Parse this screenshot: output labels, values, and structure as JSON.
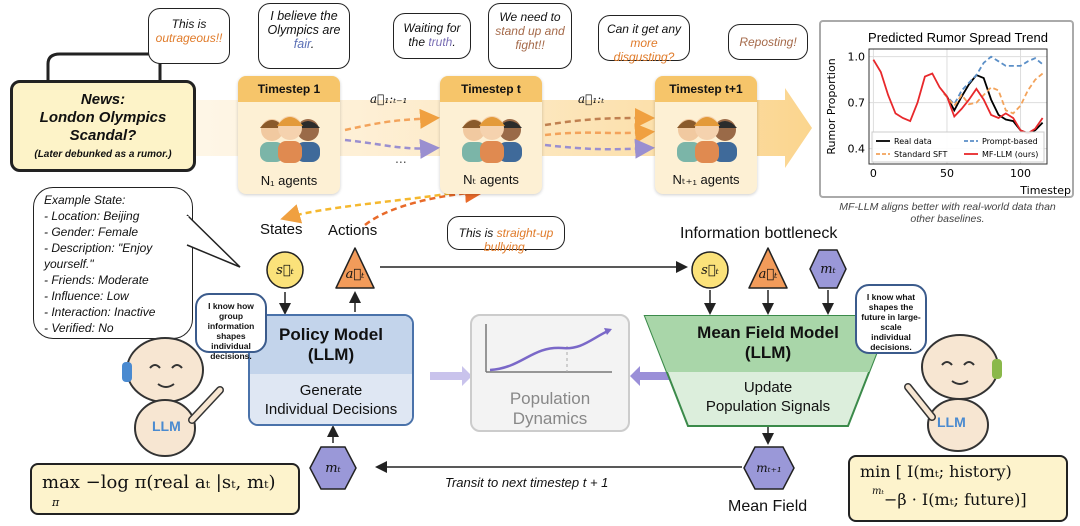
{
  "news": {
    "title": "News:\nLondon Olympics\nScandal?",
    "note": "(Later debunked as a rumor.)"
  },
  "bubbles": [
    {
      "pre": "This is ",
      "hl": "outrageous!!",
      "post": "",
      "color": "#e07b2a"
    },
    {
      "pre": "I believe the Olympics are ",
      "hl": "fair",
      "post": ".",
      "color": "#5a6fb5"
    },
    {
      "pre": "Waiting for the ",
      "hl": "truth",
      "post": ".",
      "color": "#7a6fb5"
    },
    {
      "pre": "We need to ",
      "hl": "stand up and fight!!",
      "post": "",
      "color": "#a56a4a"
    },
    {
      "pre": "Can it get any ",
      "hl": "more disgusting?",
      "post": "",
      "color": "#e07b2a"
    },
    {
      "pre": "",
      "hl": "Reposting!",
      "post": "",
      "color": "#a56a4a"
    }
  ],
  "timesteps": [
    {
      "title": "Timestep 1",
      "agents": "N₁ agents"
    },
    {
      "title": "Timestep t",
      "agents": "Nₜ agents"
    },
    {
      "title": "Timestep t+1",
      "agents": "Nₜ₊₁ agents"
    }
  ],
  "arrow_labels": {
    "a1": "a⃗₁:ₜ₋₁",
    "a2": "a⃗₁:ₜ",
    "ellipsis": "..."
  },
  "example_state": [
    "Example State:",
    "- Location: Beijing",
    "- Gender: Female",
    "- Description: \"Enjoy",
    "yourself.\"",
    "- Friends: Moderate",
    "- Influence: Low",
    "- Interaction: Inactive",
    "- Verified: No"
  ],
  "states_label": "States",
  "actions_label": "Actions",
  "bully": {
    "pre": "This is ",
    "hl": "straight-up bullying",
    "post": ".",
    "color": "#e07b2a"
  },
  "info_bottleneck": "Information bottleneck",
  "symbols": {
    "s": "s⃗ₜ",
    "a": "a⃗ₜ",
    "m": "mₜ",
    "m_next": "mₜ₊₁"
  },
  "policy": {
    "title": "Policy Model\n(LLM)",
    "body": "Generate\nIndividual Decisions"
  },
  "population": "Population\nDynamics",
  "meanfield": {
    "title": "Mean Field Model\n(LLM)",
    "body": "Update\nPopulation Signals"
  },
  "robot_left": "I know how group information shapes individual decisions.",
  "robot_right": "I know what shapes the future in large-scale individual decisions.",
  "robot_badge": "LLM",
  "transit": "Transit to next timestep t + 1",
  "mean_field_label": "Mean Field",
  "formula_left": "max −log π(real aₜ |sₜ, mₜ)",
  "formula_left_sub": "π",
  "formula_right_1": "min [ I(mₜ; history)",
  "formula_right_sub": "mₜ",
  "formula_right_2": "−β · I(mₜ; future)]",
  "caption": "MF-LLM aligns better with real-world data than other baselines.",
  "chart_data": {
    "type": "line",
    "title": "Predicted Rumor Spread Trend",
    "xlabel": "Timestep",
    "ylabel": "Rumor Proportion",
    "xticks": [
      0,
      50,
      100
    ],
    "yticks": [
      0.4,
      0.7,
      1.0
    ],
    "xlim": [
      -3,
      118
    ],
    "ylim": [
      0.3,
      1.05
    ],
    "grid": true,
    "legend": "bottom",
    "series": [
      {
        "name": "Real data",
        "color": "#000000",
        "dash": false,
        "x": [
          48,
          50,
          55,
          60,
          65,
          70,
          75,
          80,
          85,
          90,
          95,
          100,
          105,
          110,
          115
        ],
        "y": [
          0.76,
          0.74,
          0.65,
          0.74,
          0.82,
          0.88,
          0.86,
          0.72,
          0.62,
          0.59,
          0.58,
          0.52,
          0.5,
          0.52,
          0.57
        ]
      },
      {
        "name": "Prompt-based",
        "color": "#5b8fc7",
        "dash": true,
        "x": [
          48,
          55,
          60,
          65,
          70,
          75,
          80,
          85,
          90,
          95,
          100,
          105,
          110,
          115
        ],
        "y": [
          0.76,
          0.69,
          0.78,
          0.83,
          0.88,
          0.96,
          1.0,
          0.97,
          0.94,
          0.94,
          0.94,
          0.97,
          0.99,
          0.95
        ]
      },
      {
        "name": "Standard SFT",
        "color": "#f3a35b",
        "dash": true,
        "x": [
          48,
          55,
          60,
          65,
          70,
          75,
          80,
          85,
          90,
          95,
          100,
          105,
          110,
          115
        ],
        "y": [
          0.76,
          0.68,
          0.75,
          0.69,
          0.7,
          0.75,
          0.8,
          0.78,
          0.65,
          0.63,
          0.68,
          0.78,
          0.85,
          0.89
        ]
      },
      {
        "name": "MF-LLM (ours)",
        "color": "#e8282b",
        "dash": false,
        "x": [
          0,
          5,
          10,
          15,
          20,
          25,
          30,
          35,
          40,
          45,
          50,
          55,
          60,
          65,
          70,
          75,
          80,
          85,
          90,
          95,
          100,
          105,
          110,
          115
        ],
        "y": [
          0.98,
          0.9,
          0.75,
          0.63,
          0.6,
          0.58,
          0.7,
          0.87,
          0.89,
          0.8,
          0.74,
          0.61,
          0.66,
          0.72,
          0.79,
          0.72,
          0.62,
          0.6,
          0.63,
          0.6,
          0.52,
          0.5,
          0.53,
          0.6
        ]
      }
    ]
  }
}
